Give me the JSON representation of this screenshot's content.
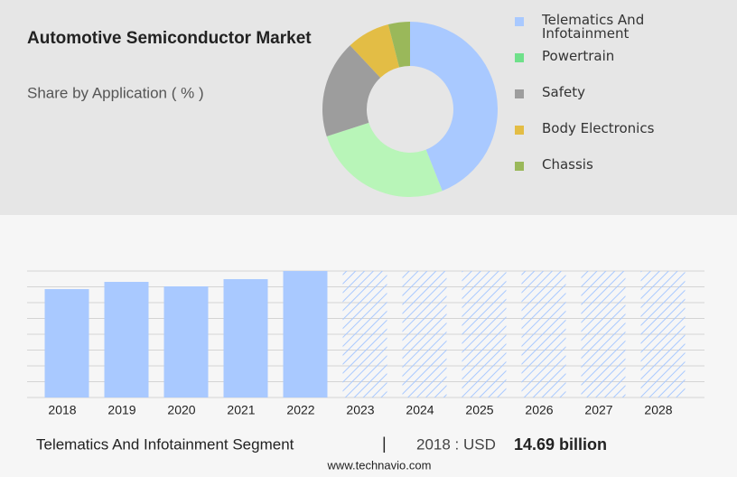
{
  "chart_data": [
    {
      "type": "donut",
      "title": "Automotive Semiconductor Market",
      "subtitle": "Share by Application ( % )",
      "categories": [
        "Telematics And Infotainment",
        "Powertrain",
        "Safety",
        "Body Electronics",
        "Chassis"
      ],
      "values": [
        44,
        26,
        18,
        8,
        4
      ],
      "colors": [
        "#a9c9ff",
        "#b8f5b8",
        "#9d9d9d",
        "#e3bd45",
        "#9ab85a"
      ],
      "legend_colors": [
        "#a9c9ff",
        "#6fe08a",
        "#9d9d9d",
        "#e3bd45",
        "#9ab85a"
      ]
    },
    {
      "type": "bar",
      "categories": [
        "2018",
        "2019",
        "2020",
        "2021",
        "2022",
        "2023",
        "2024",
        "2025",
        "2026",
        "2027",
        "2028"
      ],
      "values": [
        14.69,
        15.67,
        15.06,
        16.04,
        17.14,
        null,
        null,
        null,
        null,
        null,
        null
      ],
      "color": "#a9c9ff",
      "ylim": [
        0,
        17.14
      ],
      "grid": true
    }
  ],
  "footer": {
    "segment": "Telematics And Infotainment Segment",
    "separator": "|",
    "year_label": "2018 : USD",
    "value": "14.69 billion",
    "source": "www.technavio.com"
  }
}
